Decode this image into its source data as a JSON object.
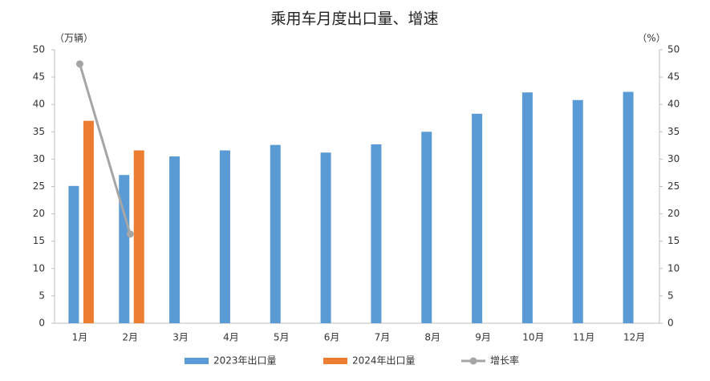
{
  "chart_data": {
    "type": "bar",
    "title": "乘用车月度出口量、增速",
    "y_label": "（万辆）",
    "y2_label": "（%）",
    "categories": [
      "1月",
      "2月",
      "3月",
      "4月",
      "5月",
      "6月",
      "7月",
      "8月",
      "9月",
      "10月",
      "11月",
      "12月"
    ],
    "series": [
      {
        "name": "2023年出口量",
        "color": "#5b9bd5",
        "values": [
          25.1,
          27.1,
          30.5,
          31.6,
          32.6,
          31.2,
          32.7,
          35.0,
          38.3,
          42.2,
          40.8,
          42.3
        ]
      },
      {
        "name": "2024年出口量",
        "color": "#ed7d31",
        "values": [
          37.0,
          31.6,
          null,
          null,
          null,
          null,
          null,
          null,
          null,
          null,
          null,
          null
        ]
      },
      {
        "name": "增长率",
        "color": "#a5a5a5",
        "type": "line",
        "axis": "y2",
        "values": [
          47.4,
          16.3,
          null,
          null,
          null,
          null,
          null,
          null,
          null,
          null,
          null,
          null
        ]
      }
    ],
    "ylim": [
      0,
      50
    ],
    "yticks": [
      0,
      5,
      10,
      15,
      20,
      25,
      30,
      35,
      40,
      45,
      50
    ],
    "y2lim": [
      0,
      50
    ],
    "y2ticks": [
      0,
      5,
      10,
      15,
      20,
      25,
      30,
      35,
      40,
      45,
      50
    ],
    "grid": false,
    "legend": "bottom"
  }
}
